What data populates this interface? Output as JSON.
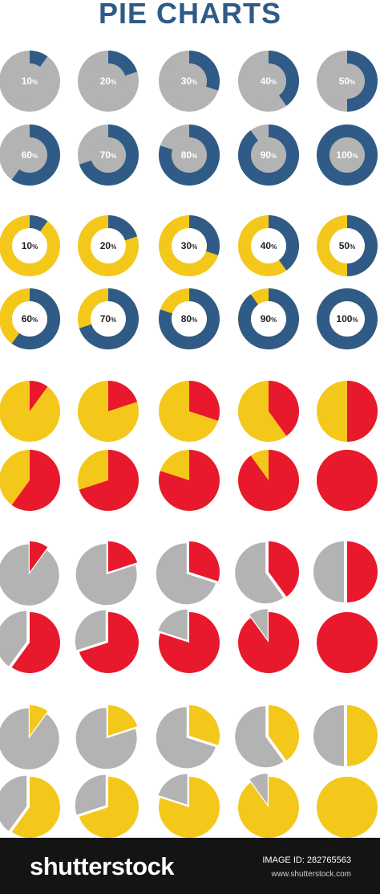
{
  "title": "PIE CHARTS",
  "colors": {
    "blue": "#2f5b86",
    "gray": "#b3b3b3",
    "yellow": "#f4c81b",
    "red": "#e8192c",
    "white": "#ffffff",
    "title": "#2f5b86"
  },
  "chart_data": {
    "type": "pie",
    "percent_values": [
      10,
      20,
      30,
      40,
      50,
      60,
      70,
      80,
      90,
      100
    ],
    "sets": [
      {
        "style": "donut",
        "fill_color": "blue",
        "base_color": "gray",
        "inner_color": "gray",
        "labeled": true
      },
      {
        "style": "donut",
        "fill_color": "blue",
        "base_color": "yellow",
        "inner_color": "white",
        "labeled": true
      },
      {
        "style": "pie",
        "fill_color": "red",
        "base_color": "yellow",
        "labeled": false
      },
      {
        "style": "pie-exploded",
        "fill_color": "red",
        "base_color": "gray",
        "labeled": false
      },
      {
        "style": "pie-exploded",
        "fill_color": "yellow",
        "base_color": "gray",
        "labeled": false
      }
    ]
  },
  "footer": {
    "logo": "shutterstock",
    "image_id": "IMAGE ID: 282765563",
    "url": "www.shutterstock.com"
  }
}
